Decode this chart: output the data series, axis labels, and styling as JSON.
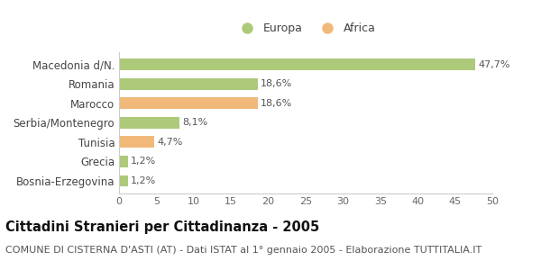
{
  "categories": [
    "Macedonia d/N.",
    "Romania",
    "Marocco",
    "Serbia/Montenegro",
    "Tunisia",
    "Grecia",
    "Bosnia-Erzegovina"
  ],
  "values": [
    47.7,
    18.6,
    18.6,
    8.1,
    4.7,
    1.2,
    1.2
  ],
  "labels": [
    "47,7%",
    "18,6%",
    "18,6%",
    "8,1%",
    "4,7%",
    "1,2%",
    "1,2%"
  ],
  "colors": [
    "#adc97a",
    "#adc97a",
    "#f0b97a",
    "#adc97a",
    "#f0b97a",
    "#adc97a",
    "#adc97a"
  ],
  "europa_color": "#adc97a",
  "africa_color": "#f0b97a",
  "legend_europa": "Europa",
  "legend_africa": "Africa",
  "xlim": [
    0,
    50
  ],
  "xticks": [
    0,
    5,
    10,
    15,
    20,
    25,
    30,
    35,
    40,
    45,
    50
  ],
  "title": "Cittadini Stranieri per Cittadinanza - 2005",
  "subtitle": "COMUNE DI CISTERNA D'ASTI (AT) - Dati ISTAT al 1° gennaio 2005 - Elaborazione TUTTITALIA.IT",
  "background_color": "#ffffff",
  "bar_height": 0.6,
  "title_fontsize": 10.5,
  "subtitle_fontsize": 8,
  "label_fontsize": 8,
  "ytick_fontsize": 8.5,
  "xtick_fontsize": 8
}
